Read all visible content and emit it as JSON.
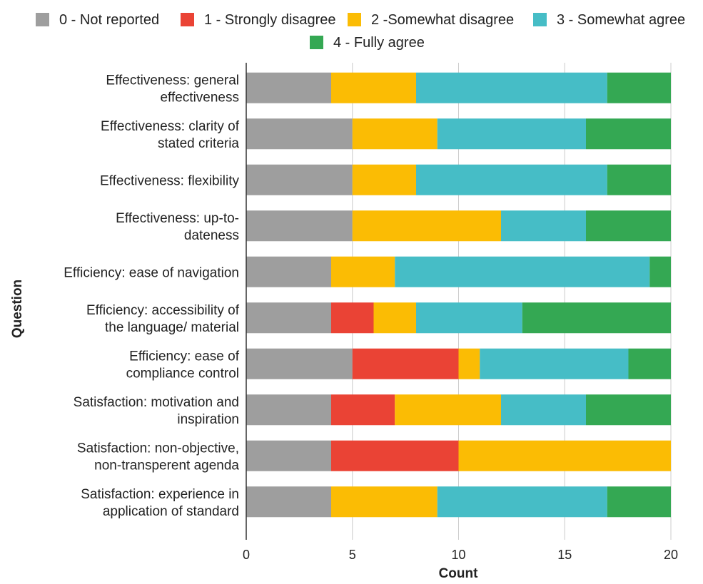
{
  "chart_data": {
    "type": "bar",
    "orientation": "horizontal",
    "stacked": true,
    "xlabel": "Count",
    "ylabel": "Question",
    "xlim": [
      0,
      20
    ],
    "xticks": [
      0,
      5,
      10,
      15,
      20
    ],
    "grid": "vertical",
    "legend_position": "top",
    "categories": [
      [
        "Effectiveness: general",
        "effectiveness"
      ],
      [
        "Effectiveness: clarity of",
        "stated criteria"
      ],
      [
        "Effectiveness: flexibility"
      ],
      [
        "Effectiveness: up-to-",
        "dateness"
      ],
      [
        "Efficiency: ease of navigation"
      ],
      [
        "Efficiency: accessibility of",
        "the language/ material"
      ],
      [
        "Efficiency: ease of",
        "compliance control"
      ],
      [
        "Satisfaction: motivation and",
        "inspiration"
      ],
      [
        "Satisfaction: non-objective,",
        "non-transperent agenda"
      ],
      [
        "Satisfaction: experience in",
        "application of standard"
      ]
    ],
    "series": [
      {
        "name": "0 - Not reported",
        "color": "#9e9e9e",
        "values": [
          4,
          5,
          5,
          5,
          4,
          4,
          5,
          4,
          4,
          4
        ]
      },
      {
        "name": "1 - Strongly disagree",
        "color": "#ea4335",
        "values": [
          0,
          0,
          0,
          0,
          0,
          2,
          5,
          3,
          6,
          0
        ]
      },
      {
        "name": "2 -Somewhat disagree",
        "color": "#fbbc04",
        "values": [
          4,
          4,
          3,
          7,
          3,
          2,
          1,
          5,
          10,
          5
        ]
      },
      {
        "name": "3 - Somewhat agree",
        "color": "#46bdc6",
        "values": [
          9,
          7,
          9,
          4,
          12,
          5,
          7,
          4,
          0,
          8
        ]
      },
      {
        "name": "4 - Fully agree",
        "color": "#34a853",
        "values": [
          3,
          4,
          3,
          4,
          1,
          7,
          2,
          4,
          0,
          3
        ]
      }
    ]
  }
}
